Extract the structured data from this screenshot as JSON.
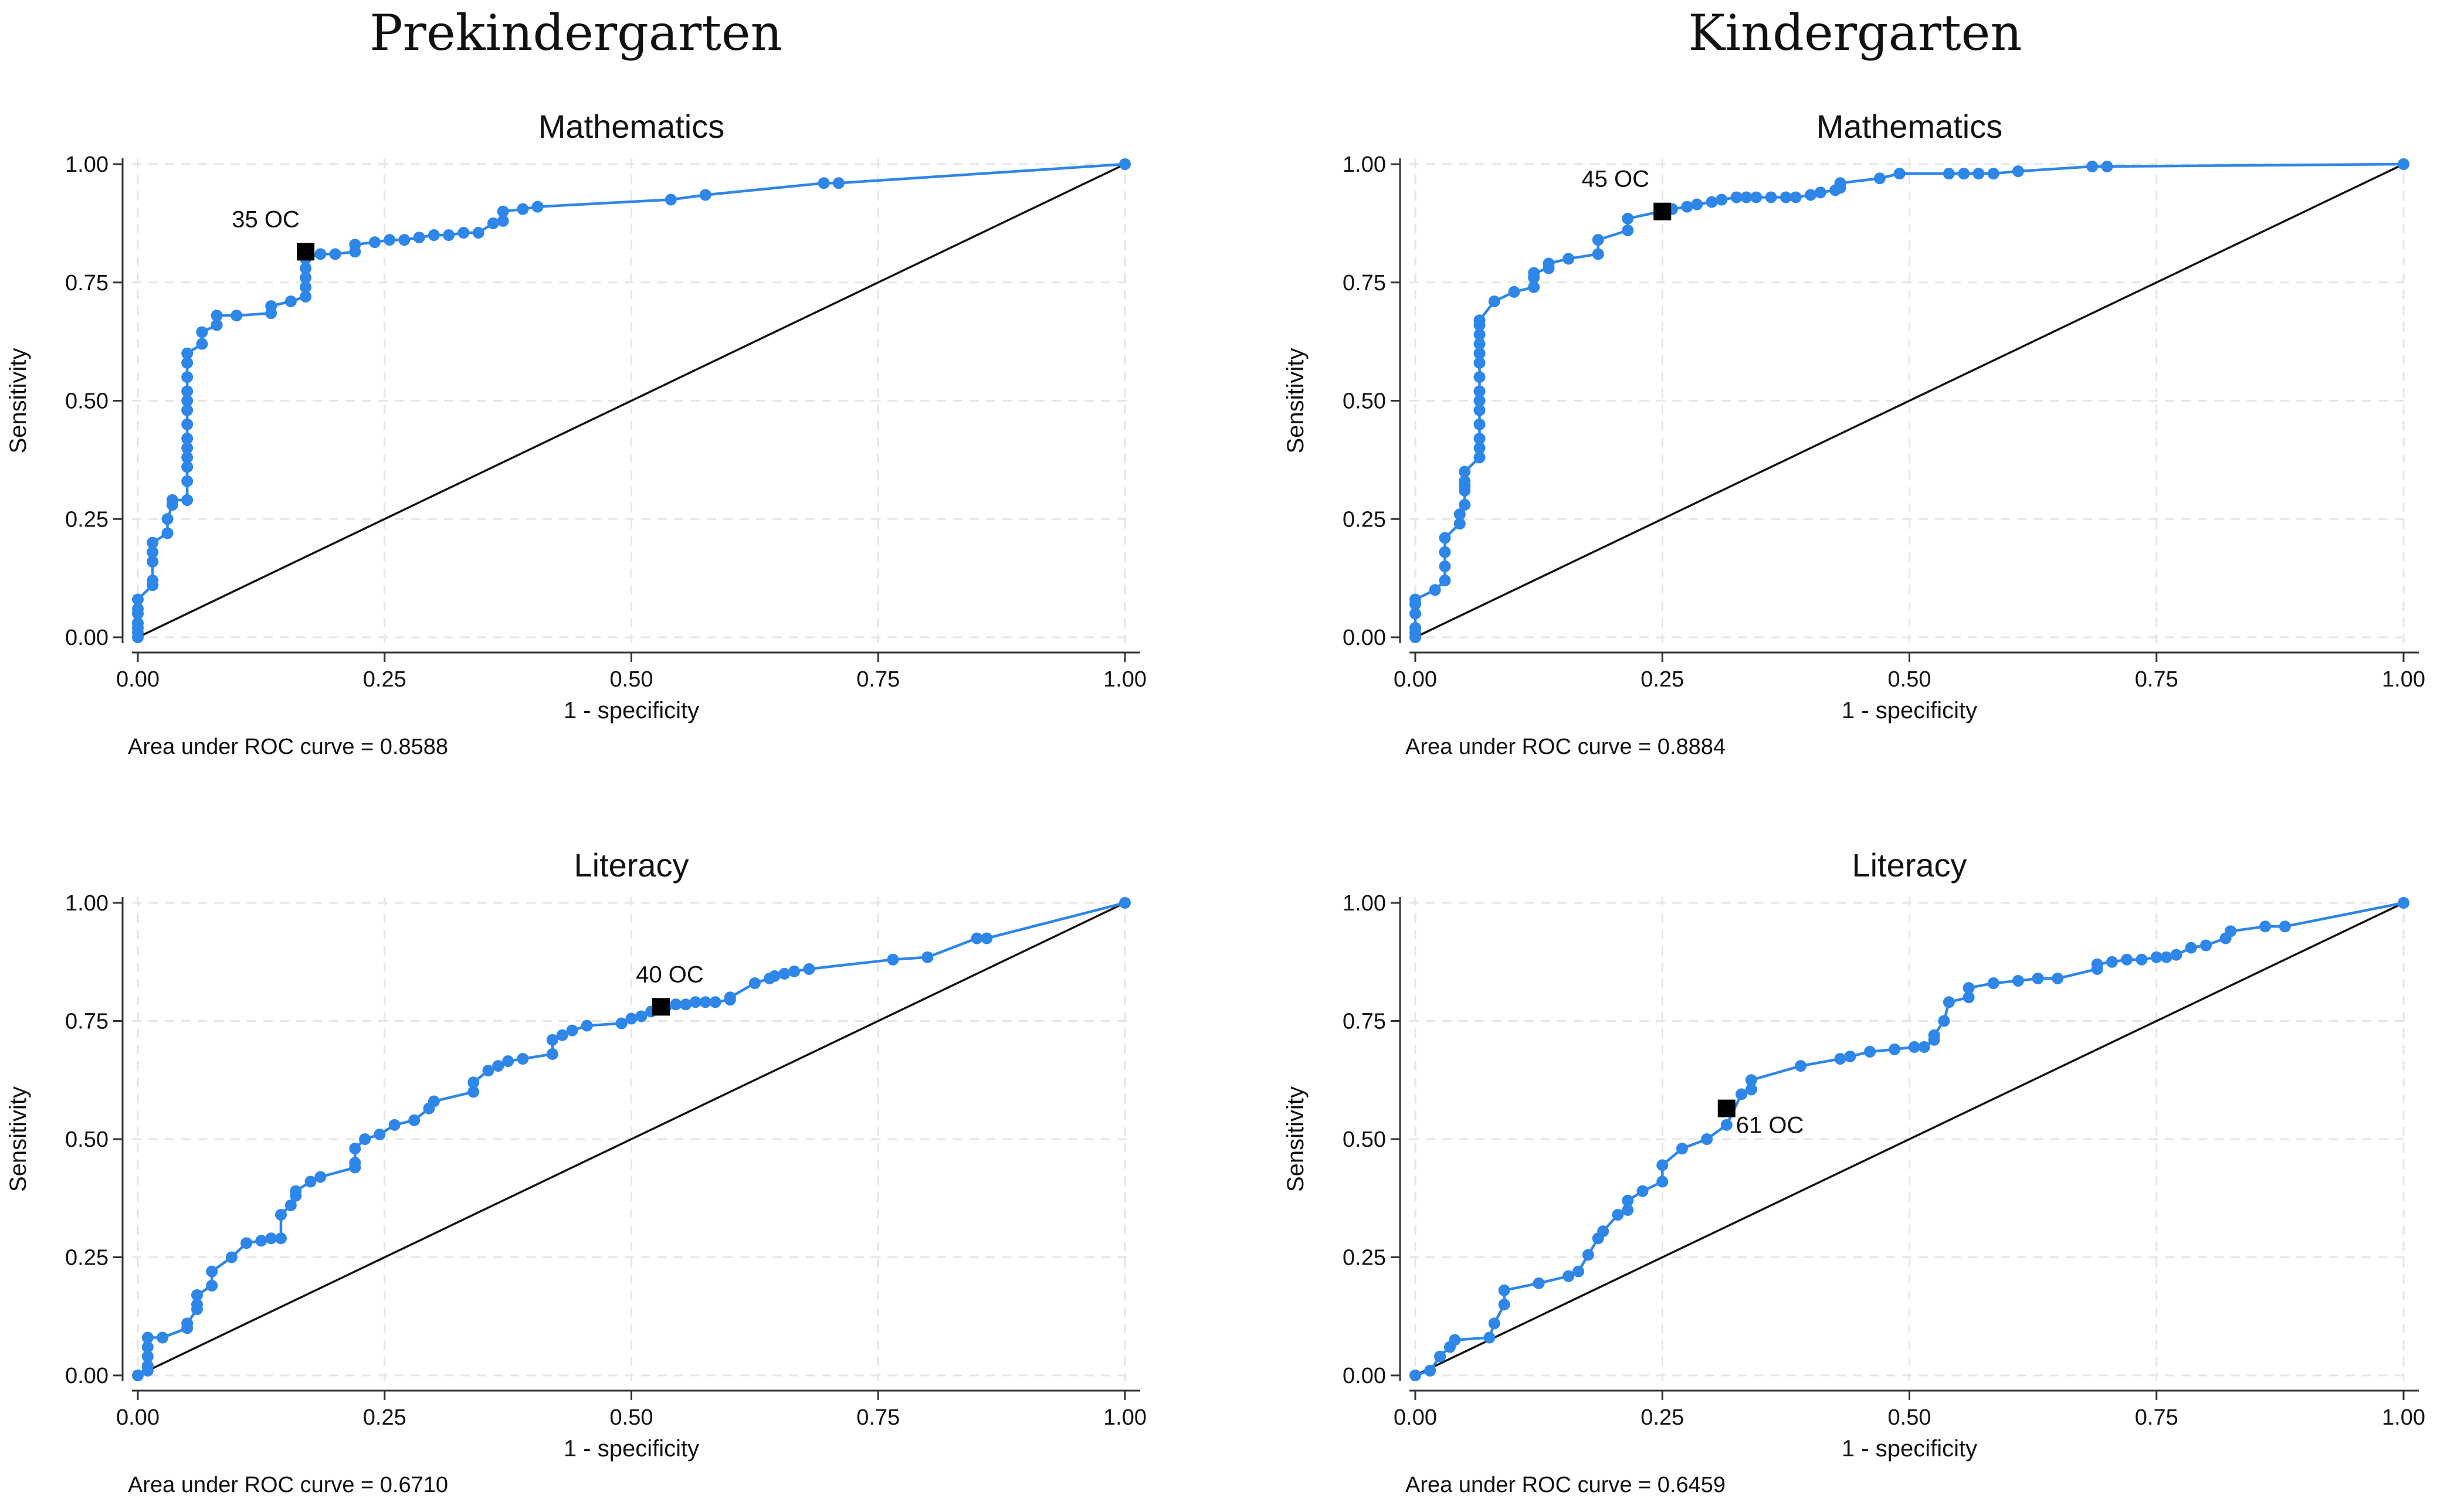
{
  "column_titles": [
    "Prekindergarten",
    "Kindergarten"
  ],
  "colors": {
    "series": "#2d86e8",
    "reference": "#111111",
    "marker": "#000000",
    "grid": "#e6e6e6"
  },
  "chart_data": [
    {
      "type": "line",
      "group": "Prekindergarten",
      "title": "Mathematics",
      "xlabel": "1 - specificity",
      "ylabel": "Sensitivity",
      "xlim": [
        0,
        1
      ],
      "ylim": [
        0,
        1
      ],
      "xticks": [
        "0.00",
        "0.25",
        "0.50",
        "0.75",
        "1.00"
      ],
      "yticks": [
        "0.00",
        "0.25",
        "0.50",
        "0.75",
        "1.00"
      ],
      "grid": true,
      "auc_text": "Area under ROC curve = 0.8588",
      "marker": {
        "label": "35 OC",
        "x": 0.17,
        "y": 0.815
      },
      "reference": "diagonal",
      "x": [
        0,
        0,
        0,
        0,
        0,
        0,
        0,
        0.015,
        0.015,
        0.015,
        0.015,
        0.015,
        0.03,
        0.03,
        0.035,
        0.035,
        0.05,
        0.05,
        0.05,
        0.05,
        0.05,
        0.05,
        0.05,
        0.05,
        0.05,
        0.05,
        0.05,
        0.05,
        0.05,
        0.065,
        0.065,
        0.08,
        0.08,
        0.1,
        0.135,
        0.135,
        0.155,
        0.17,
        0.17,
        0.17,
        0.17,
        0.17,
        0.185,
        0.2,
        0.22,
        0.22,
        0.24,
        0.255,
        0.27,
        0.285,
        0.3,
        0.315,
        0.33,
        0.345,
        0.36,
        0.37,
        0.37,
        0.39,
        0.405,
        0.54,
        0.575,
        0.695,
        0.71,
        1
      ],
      "y": [
        0,
        0.01,
        0.02,
        0.03,
        0.05,
        0.06,
        0.08,
        0.11,
        0.12,
        0.16,
        0.18,
        0.2,
        0.22,
        0.25,
        0.28,
        0.29,
        0.29,
        0.33,
        0.36,
        0.38,
        0.4,
        0.42,
        0.45,
        0.48,
        0.5,
        0.52,
        0.55,
        0.58,
        0.6,
        0.62,
        0.645,
        0.66,
        0.68,
        0.68,
        0.685,
        0.7,
        0.71,
        0.72,
        0.74,
        0.76,
        0.78,
        0.8,
        0.81,
        0.81,
        0.815,
        0.83,
        0.835,
        0.84,
        0.84,
        0.845,
        0.85,
        0.85,
        0.855,
        0.855,
        0.875,
        0.88,
        0.9,
        0.905,
        0.91,
        0.925,
        0.935,
        0.96,
        0.96,
        1
      ]
    },
    {
      "type": "line",
      "group": "Kindergarten",
      "title": "Mathematics",
      "xlabel": "1 - specificity",
      "ylabel": "Sensitivity",
      "xlim": [
        0,
        1
      ],
      "ylim": [
        0,
        1
      ],
      "xticks": [
        "0.00",
        "0.25",
        "0.50",
        "0.75",
        "1.00"
      ],
      "yticks": [
        "0.00",
        "0.25",
        "0.50",
        "0.75",
        "1.00"
      ],
      "grid": true,
      "auc_text": "Area under ROC curve = 0.8884",
      "marker": {
        "label": "45 OC",
        "x": 0.25,
        "y": 0.9
      },
      "reference": "diagonal",
      "x": [
        0,
        0,
        0,
        0,
        0,
        0,
        0.02,
        0.03,
        0.03,
        0.03,
        0.03,
        0.045,
        0.045,
        0.05,
        0.05,
        0.05,
        0.05,
        0.05,
        0.065,
        0.065,
        0.065,
        0.065,
        0.065,
        0.065,
        0.065,
        0.065,
        0.065,
        0.065,
        0.065,
        0.065,
        0.065,
        0.065,
        0.08,
        0.1,
        0.12,
        0.12,
        0.12,
        0.135,
        0.135,
        0.155,
        0.185,
        0.185,
        0.215,
        0.215,
        0.26,
        0.275,
        0.285,
        0.3,
        0.31,
        0.325,
        0.335,
        0.345,
        0.36,
        0.375,
        0.385,
        0.4,
        0.41,
        0.425,
        0.43,
        0.43,
        0.47,
        0.49,
        0.54,
        0.555,
        0.57,
        0.585,
        0.61,
        0.685,
        0.7,
        1
      ],
      "y": [
        0,
        0.01,
        0.02,
        0.05,
        0.07,
        0.08,
        0.1,
        0.12,
        0.15,
        0.18,
        0.21,
        0.24,
        0.26,
        0.28,
        0.31,
        0.32,
        0.33,
        0.35,
        0.38,
        0.4,
        0.42,
        0.45,
        0.48,
        0.5,
        0.52,
        0.55,
        0.58,
        0.6,
        0.62,
        0.64,
        0.66,
        0.67,
        0.71,
        0.73,
        0.74,
        0.76,
        0.77,
        0.78,
        0.79,
        0.8,
        0.81,
        0.84,
        0.86,
        0.885,
        0.905,
        0.91,
        0.915,
        0.92,
        0.925,
        0.93,
        0.93,
        0.93,
        0.93,
        0.93,
        0.93,
        0.935,
        0.94,
        0.945,
        0.95,
        0.96,
        0.97,
        0.98,
        0.98,
        0.98,
        0.98,
        0.98,
        0.985,
        0.995,
        0.995,
        1
      ]
    },
    {
      "type": "line",
      "group": "Prekindergarten",
      "title": "Literacy",
      "xlabel": "1 - specificity",
      "ylabel": "Sensitivity",
      "xlim": [
        0,
        1
      ],
      "ylim": [
        0,
        1
      ],
      "xticks": [
        "0.00",
        "0.25",
        "0.50",
        "0.75",
        "1.00"
      ],
      "yticks": [
        "0.00",
        "0.25",
        "0.50",
        "0.75",
        "1.00"
      ],
      "grid": true,
      "auc_text": "Area under ROC curve = 0.6710",
      "marker": {
        "label": "40 OC",
        "x": 0.53,
        "y": 0.78
      },
      "reference": "diagonal",
      "x": [
        0,
        0.01,
        0.01,
        0.01,
        0.01,
        0.01,
        0.025,
        0.05,
        0.05,
        0.06,
        0.06,
        0.06,
        0.075,
        0.075,
        0.095,
        0.11,
        0.125,
        0.135,
        0.145,
        0.145,
        0.155,
        0.16,
        0.16,
        0.175,
        0.185,
        0.22,
        0.22,
        0.22,
        0.23,
        0.245,
        0.26,
        0.28,
        0.295,
        0.3,
        0.34,
        0.34,
        0.355,
        0.365,
        0.375,
        0.39,
        0.42,
        0.42,
        0.43,
        0.44,
        0.455,
        0.49,
        0.5,
        0.51,
        0.52,
        0.535,
        0.545,
        0.555,
        0.565,
        0.575,
        0.585,
        0.6,
        0.6,
        0.625,
        0.64,
        0.645,
        0.655,
        0.665,
        0.68,
        0.765,
        0.8,
        0.85,
        0.86,
        1
      ],
      "y": [
        0,
        0.01,
        0.02,
        0.04,
        0.06,
        0.08,
        0.08,
        0.1,
        0.11,
        0.14,
        0.15,
        0.17,
        0.19,
        0.22,
        0.25,
        0.28,
        0.285,
        0.29,
        0.29,
        0.34,
        0.36,
        0.38,
        0.39,
        0.41,
        0.42,
        0.44,
        0.45,
        0.48,
        0.5,
        0.51,
        0.53,
        0.54,
        0.565,
        0.58,
        0.6,
        0.62,
        0.645,
        0.655,
        0.665,
        0.67,
        0.68,
        0.71,
        0.72,
        0.73,
        0.74,
        0.745,
        0.755,
        0.76,
        0.77,
        0.78,
        0.785,
        0.785,
        0.79,
        0.79,
        0.79,
        0.795,
        0.8,
        0.83,
        0.84,
        0.845,
        0.85,
        0.855,
        0.86,
        0.88,
        0.885,
        0.925,
        0.925,
        1
      ]
    },
    {
      "type": "line",
      "group": "Kindergarten",
      "title": "Literacy",
      "xlabel": "1 - specificity",
      "ylabel": "Sensitivity",
      "xlim": [
        0,
        1
      ],
      "ylim": [
        0,
        1
      ],
      "xticks": [
        "0.00",
        "0.25",
        "0.50",
        "0.75",
        "1.00"
      ],
      "yticks": [
        "0.00",
        "0.25",
        "0.50",
        "0.75",
        "1.00"
      ],
      "grid": true,
      "auc_text": "Area under ROC curve = 0.6459",
      "marker": {
        "label": "61 OC",
        "x": 0.315,
        "y": 0.565
      },
      "reference": "diagonal",
      "x": [
        0,
        0.015,
        0.025,
        0.035,
        0.04,
        0.075,
        0.08,
        0.09,
        0.09,
        0.125,
        0.155,
        0.165,
        0.175,
        0.185,
        0.19,
        0.205,
        0.215,
        0.215,
        0.23,
        0.25,
        0.25,
        0.27,
        0.295,
        0.315,
        0.33,
        0.34,
        0.34,
        0.39,
        0.43,
        0.44,
        0.46,
        0.485,
        0.505,
        0.515,
        0.525,
        0.525,
        0.535,
        0.54,
        0.56,
        0.56,
        0.585,
        0.61,
        0.63,
        0.65,
        0.69,
        0.69,
        0.705,
        0.72,
        0.735,
        0.75,
        0.76,
        0.77,
        0.785,
        0.8,
        0.82,
        0.825,
        0.86,
        0.88,
        1
      ],
      "y": [
        0,
        0.01,
        0.04,
        0.06,
        0.075,
        0.08,
        0.11,
        0.15,
        0.18,
        0.195,
        0.21,
        0.22,
        0.255,
        0.29,
        0.305,
        0.34,
        0.35,
        0.37,
        0.39,
        0.41,
        0.445,
        0.48,
        0.5,
        0.53,
        0.595,
        0.605,
        0.625,
        0.655,
        0.67,
        0.675,
        0.685,
        0.69,
        0.695,
        0.695,
        0.71,
        0.72,
        0.75,
        0.79,
        0.8,
        0.82,
        0.83,
        0.835,
        0.84,
        0.84,
        0.86,
        0.87,
        0.875,
        0.88,
        0.88,
        0.885,
        0.885,
        0.89,
        0.905,
        0.91,
        0.925,
        0.94,
        0.95,
        0.95,
        1
      ]
    }
  ]
}
